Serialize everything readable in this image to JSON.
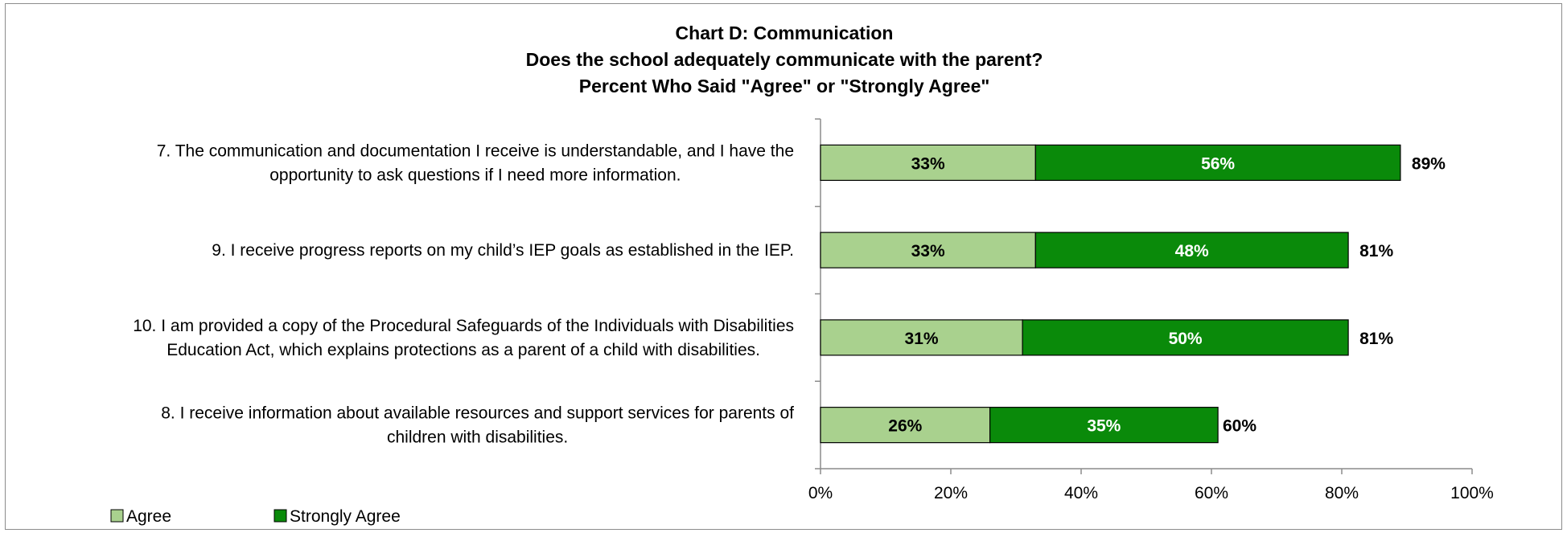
{
  "chart_data": {
    "type": "bar",
    "orientation": "horizontal",
    "stacked": true,
    "title": [
      "Chart D: Communication",
      "Does the school adequately communicate with the parent?",
      "Percent Who Said \"Agree\" or \"Strongly Agree\""
    ],
    "categories": [
      [
        "7. The communication and documentation I receive is understandable, and I have the",
        "opportunity to ask questions if I need more information."
      ],
      [
        "9. I receive progress reports on my child’s IEP goals as established in the IEP."
      ],
      [
        "10. I am provided a copy of the Procedural Safeguards of the Individuals with Disabilities",
        "Education Act, which explains protections as a parent of a child with disabilities."
      ],
      [
        "8. I receive information about available resources and support services for parents of",
        "children with disabilities."
      ]
    ],
    "series": [
      {
        "name": "Agree",
        "color": "#a9d18e",
        "values": [
          33,
          33,
          31,
          26
        ],
        "labels": [
          "33%",
          "33%",
          "31%",
          "26%"
        ]
      },
      {
        "name": "Strongly Agree",
        "color": "#0a8a0a",
        "values": [
          56,
          48,
          50,
          35
        ],
        "labels": [
          "56%",
          "48%",
          "50%",
          "35%"
        ]
      }
    ],
    "totals": [
      89,
      81,
      81,
      60
    ],
    "total_labels": [
      "89%",
      "81%",
      "81%",
      "60%"
    ],
    "xlim": [
      0,
      100
    ],
    "x_ticks": [
      0,
      20,
      40,
      60,
      80,
      100
    ],
    "x_tick_labels": [
      "0%",
      "20%",
      "40%",
      "60%",
      "80%",
      "100%"
    ],
    "grid": false,
    "legend_position": "bottom-left"
  }
}
